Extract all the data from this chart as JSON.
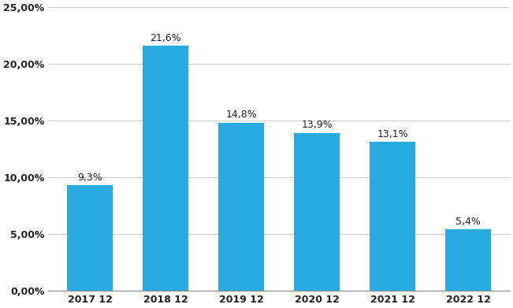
{
  "categories": [
    "2017 12",
    "2018 12",
    "2019 12",
    "2020 12",
    "2021 12",
    "2022 12"
  ],
  "values": [
    9.3,
    21.6,
    14.8,
    13.9,
    13.1,
    5.4
  ],
  "bar_color": "#29ABE2",
  "ylim": [
    0,
    25
  ],
  "yticks": [
    0,
    5,
    10,
    15,
    20,
    25
  ],
  "ytick_labels": [
    "0,00%",
    "5,00%",
    "10,00%",
    "15,00%",
    "20,00%",
    "25,00%"
  ],
  "background_color": "#ffffff",
  "grid_color": "#d0d0d0",
  "bar_width": 0.6
}
